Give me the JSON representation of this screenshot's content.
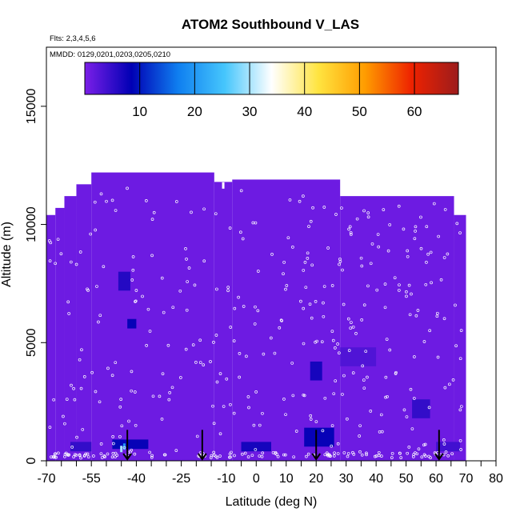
{
  "chart_data": {
    "type": "heatmap",
    "title": "ATOM2 Southbound V_LAS",
    "subtitle_flights": "Flts: 2,3,4,5,6",
    "subtitle_dates": "MMDD: 0129,0201,0203,0205,0210",
    "xlabel": "Latitude (deg N)",
    "ylabel": "Altitude (m)",
    "xlim": [
      -70,
      80
    ],
    "ylim": [
      0,
      17500
    ],
    "x_ticks": [
      -70,
      -55,
      -40,
      -25,
      -10,
      0,
      10,
      20,
      30,
      40,
      50,
      60,
      70,
      80
    ],
    "x_ticks_labels": [
      "-70",
      "-55",
      "-40",
      "-25",
      "-10",
      "0",
      "10",
      "20",
      "30",
      "40",
      "50",
      "60",
      "70",
      "80"
    ],
    "x_minor_ticks": [
      -65,
      -60,
      -50,
      -45,
      -35,
      -30,
      -20,
      -15,
      -5,
      5,
      15,
      25,
      35,
      45,
      55,
      65,
      75
    ],
    "y_ticks": [
      0,
      5000,
      10000,
      15000
    ],
    "y_tick_labels": [
      "0",
      "5000",
      "10000",
      "15000"
    ],
    "colorbar": {
      "range": [
        0,
        68
      ],
      "ticks": [
        10,
        20,
        30,
        40,
        50,
        60
      ],
      "tick_labels": [
        "10",
        "20",
        "30",
        "40",
        "50",
        "60"
      ],
      "colors": [
        "#7b1fe8",
        "#0000b4",
        "#0f7ff0",
        "#46c6fc",
        "#ffffff",
        "#ffe440",
        "#ff9c00",
        "#ee2200",
        "#9c1c1c"
      ]
    },
    "field_baseline_value": 1,
    "coverage_columns": [
      {
        "lat": [
          -70,
          -67
        ],
        "top": 10400
      },
      {
        "lat": [
          -67,
          -64
        ],
        "top": 10700
      },
      {
        "lat": [
          -64,
          -60
        ],
        "top": 11200
      },
      {
        "lat": [
          -60,
          -55
        ],
        "top": 11700
      },
      {
        "lat": [
          -55,
          -14
        ],
        "top": 12200
      },
      {
        "lat": [
          -14,
          -8
        ],
        "top": 11800
      },
      {
        "lat": [
          -8,
          28
        ],
        "top": 11900
      },
      {
        "lat": [
          28,
          66
        ],
        "top": 11200
      },
      {
        "lat": [
          66,
          70
        ],
        "top": 10400
      }
    ],
    "anomalies": [
      {
        "lat": [
          -46,
          -42
        ],
        "alt": [
          7200,
          8000
        ],
        "value": 6
      },
      {
        "lat": [
          -43,
          -40
        ],
        "alt": [
          5600,
          6000
        ],
        "value": 8
      },
      {
        "lat": [
          -48,
          -44
        ],
        "alt": [
          500,
          900
        ],
        "value": 9
      },
      {
        "lat": [
          -44,
          -36
        ],
        "alt": [
          500,
          900
        ],
        "value": 8
      },
      {
        "lat": [
          -5,
          5
        ],
        "alt": [
          400,
          800
        ],
        "value": 7
      },
      {
        "lat": [
          16,
          26
        ],
        "alt": [
          600,
          1400
        ],
        "value": 8
      },
      {
        "lat": [
          18,
          22
        ],
        "alt": [
          3400,
          4200
        ],
        "value": 7
      },
      {
        "lat": [
          52,
          58
        ],
        "alt": [
          1800,
          2600
        ],
        "value": 5
      },
      {
        "lat": [
          -62,
          -55
        ],
        "alt": [
          400,
          800
        ],
        "value": 5
      },
      {
        "lat": [
          28,
          40
        ],
        "alt": [
          4000,
          4800
        ],
        "value": 3
      },
      {
        "lat": [
          60,
          68
        ],
        "alt": [
          400,
          800
        ],
        "value": 4
      }
    ],
    "spots": [
      {
        "lat": -45,
        "alt": 500,
        "value": 30
      },
      {
        "lat": -44,
        "alt": 600,
        "value": 20
      },
      {
        "lat": -11,
        "alt": 11650,
        "value": 34
      }
    ],
    "arrows": [
      {
        "lat": -43,
        "alt": 700
      },
      {
        "lat": -18,
        "alt": 700
      },
      {
        "lat": 20,
        "alt": 700
      },
      {
        "lat": 61,
        "alt": 700
      }
    ]
  }
}
